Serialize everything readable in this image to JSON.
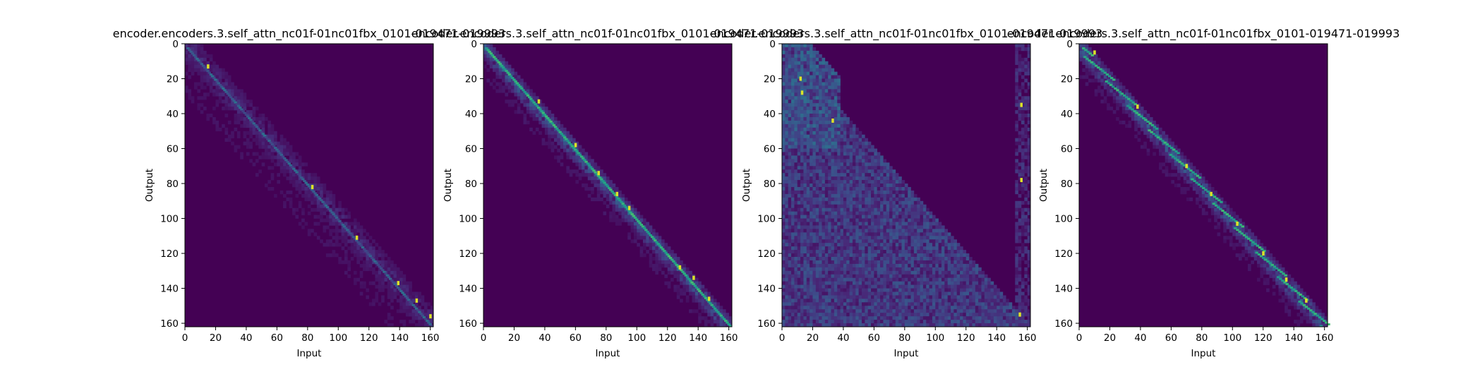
{
  "chart_data": [
    {
      "type": "heatmap",
      "title": "encoder.encoders.3.self_attn_nc01f-01nc01fbx_0101-019471-019993",
      "xlabel": "Input",
      "ylabel": "Output",
      "xlim": [
        0,
        162
      ],
      "ylim": [
        162,
        0
      ],
      "xticks": [
        "0",
        "20",
        "40",
        "60",
        "80",
        "100",
        "120",
        "140",
        "160"
      ],
      "yticks": [
        "0",
        "20",
        "40",
        "60",
        "80",
        "100",
        "120",
        "140",
        "160"
      ],
      "colormap": "viridis",
      "pattern": "sparse-diagonal",
      "bright_points": [
        [
          15,
          13
        ],
        [
          83,
          82
        ],
        [
          112,
          111
        ],
        [
          139,
          137
        ],
        [
          151,
          147
        ],
        [
          160,
          156
        ]
      ]
    },
    {
      "type": "heatmap",
      "title": "encoder.encoders.3.self_attn_nc01f-01nc01fbx_0101-019471-019993",
      "xlabel": "Input",
      "ylabel": "Output",
      "xlim": [
        0,
        162
      ],
      "ylim": [
        162,
        0
      ],
      "xticks": [
        "0",
        "20",
        "40",
        "60",
        "80",
        "100",
        "120",
        "140",
        "160"
      ],
      "yticks": [
        "0",
        "20",
        "40",
        "60",
        "80",
        "100",
        "120",
        "140",
        "160"
      ],
      "colormap": "viridis",
      "pattern": "strong-diagonal",
      "bright_points": [
        [
          36,
          33
        ],
        [
          60,
          58
        ],
        [
          75,
          74
        ],
        [
          87,
          86
        ],
        [
          95,
          94
        ],
        [
          128,
          128
        ],
        [
          137,
          134
        ],
        [
          147,
          146
        ]
      ]
    },
    {
      "type": "heatmap",
      "title": "encoder.encoders.3.self_attn_nc01f-01nc01fbx_0101-019471-019993",
      "xlabel": "Input",
      "ylabel": "Output",
      "xlim": [
        0,
        162
      ],
      "ylim": [
        162,
        0
      ],
      "xticks": [
        "0",
        "20",
        "40",
        "60",
        "80",
        "100",
        "120",
        "140",
        "160"
      ],
      "yticks": [
        "0",
        "20",
        "40",
        "60",
        "80",
        "100",
        "120",
        "140",
        "160"
      ],
      "colormap": "viridis",
      "pattern": "lower-triangular-diffuse",
      "bright_points": [
        [
          12,
          20
        ],
        [
          13,
          28
        ],
        [
          33,
          44
        ],
        [
          156,
          35
        ],
        [
          156,
          78
        ],
        [
          155,
          155
        ]
      ]
    },
    {
      "type": "heatmap",
      "title": "encoder.encoders.3.self_attn_nc01f-01nc01fbx_0101-019471-019993",
      "xlabel": "Input",
      "ylabel": "Output",
      "xlim": [
        0,
        162
      ],
      "ylim": [
        162,
        0
      ],
      "xticks": [
        "0",
        "20",
        "40",
        "60",
        "80",
        "100",
        "120",
        "140",
        "160"
      ],
      "yticks": [
        "0",
        "20",
        "40",
        "60",
        "80",
        "100",
        "120",
        "140",
        "160"
      ],
      "colormap": "viridis",
      "pattern": "step-diagonal",
      "bright_points": [
        [
          10,
          5
        ],
        [
          38,
          36
        ],
        [
          70,
          70
        ],
        [
          86,
          86
        ],
        [
          103,
          103
        ],
        [
          120,
          120
        ],
        [
          135,
          135
        ],
        [
          148,
          147
        ]
      ]
    }
  ]
}
